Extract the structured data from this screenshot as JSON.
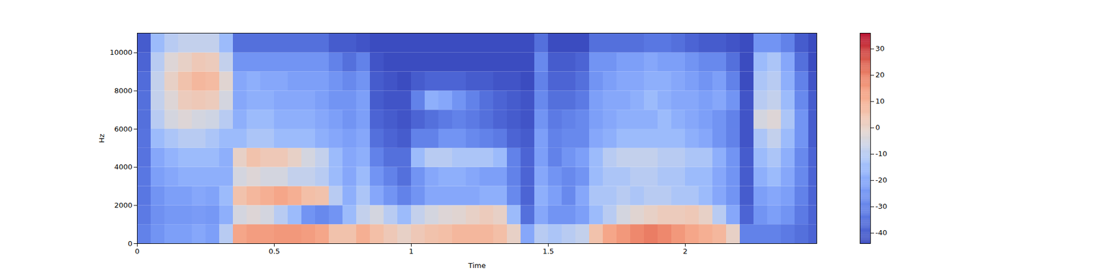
{
  "chart_data": {
    "type": "heatmap",
    "x_label": "Time",
    "y_label": "Hz",
    "time_edges": [
      0,
      0.05,
      0.1,
      0.15,
      0.2,
      0.25,
      0.3,
      0.35,
      0.4,
      0.45,
      0.5,
      0.55,
      0.6,
      0.65,
      0.7,
      0.75,
      0.8,
      0.85,
      0.9,
      0.95,
      1.0,
      1.05,
      1.1,
      1.15,
      1.2,
      1.25,
      1.3,
      1.35,
      1.4,
      1.45,
      1.5,
      1.55,
      1.6,
      1.65,
      1.7,
      1.75,
      1.8,
      1.85,
      1.9,
      1.95,
      2.0,
      2.05,
      2.1,
      2.15,
      2.2,
      2.25,
      2.3,
      2.35,
      2.4,
      2.45,
      2.48
    ],
    "freq_edges": [
      0,
      1000,
      2000,
      3000,
      4000,
      5000,
      6000,
      7000,
      8000,
      9000,
      10000,
      11025
    ],
    "cells": [
      [
        -30,
        -32,
        -33,
        -33,
        -34,
        -34,
        -35,
        -35,
        -36,
        -38,
        -40
      ],
      [
        -25,
        -26,
        -25,
        -22,
        -20,
        -15,
        -10,
        -8,
        -8,
        -10,
        -15
      ],
      [
        -22,
        -24,
        -22,
        -20,
        -17,
        -12,
        -5,
        -3,
        0,
        -3,
        -10
      ],
      [
        -22,
        -24,
        -22,
        -18,
        -15,
        -10,
        -3,
        2,
        5,
        0,
        -8
      ],
      [
        -20,
        -23,
        -20,
        -18,
        -15,
        -10,
        -5,
        3,
        8,
        3,
        -8
      ],
      [
        -22,
        -24,
        -21,
        -18,
        -15,
        -12,
        -6,
        2,
        7,
        2,
        -8
      ],
      [
        -10,
        -18,
        -15,
        -18,
        -18,
        -15,
        -10,
        -5,
        -2,
        -8,
        -15
      ],
      [
        12,
        -5,
        5,
        -5,
        0,
        -15,
        -18,
        -20,
        -20,
        -25,
        -35
      ],
      [
        14,
        -3,
        8,
        -3,
        5,
        -12,
        -15,
        -18,
        -18,
        -25,
        -35
      ],
      [
        14,
        -5,
        10,
        -5,
        3,
        -12,
        -15,
        -18,
        -20,
        -25,
        -35
      ],
      [
        15,
        -10,
        12,
        -5,
        3,
        -15,
        -18,
        -20,
        -20,
        -25,
        -35
      ],
      [
        15,
        -15,
        10,
        -8,
        0,
        -15,
        -18,
        -20,
        -22,
        -25,
        -35
      ],
      [
        14,
        -25,
        6,
        -8,
        -5,
        -15,
        -18,
        -20,
        -22,
        -25,
        -35
      ],
      [
        12,
        -28,
        5,
        -10,
        -8,
        -18,
        -20,
        -22,
        -22,
        -25,
        -35
      ],
      [
        5,
        -25,
        -10,
        -15,
        -15,
        -20,
        -22,
        -25,
        -25,
        -30,
        -40
      ],
      [
        5,
        -15,
        -18,
        -20,
        -20,
        -22,
        -25,
        -25,
        -28,
        -35,
        -40
      ],
      [
        10,
        -8,
        -12,
        -15,
        -18,
        -20,
        -22,
        -22,
        -25,
        -30,
        -42
      ],
      [
        6,
        -5,
        -20,
        -25,
        -30,
        -35,
        -38,
        -40,
        -40,
        -42,
        -44
      ],
      [
        3,
        -10,
        -25,
        -30,
        -35,
        -38,
        -40,
        -42,
        -42,
        -44,
        -44
      ],
      [
        0,
        -15,
        -30,
        -35,
        -35,
        -40,
        -42,
        -42,
        -44,
        -44,
        -44
      ],
      [
        3,
        -8,
        -25,
        -25,
        -15,
        -30,
        -38,
        -30,
        -40,
        -44,
        -44
      ],
      [
        5,
        -5,
        -20,
        -20,
        -10,
        -30,
        -35,
        -18,
        -38,
        -44,
        -44
      ],
      [
        6,
        -3,
        -20,
        -18,
        -10,
        -25,
        -32,
        -20,
        -38,
        -44,
        -44
      ],
      [
        8,
        -2,
        -20,
        -18,
        -12,
        -25,
        -30,
        -25,
        -38,
        -44,
        -44
      ],
      [
        8,
        0,
        -20,
        -20,
        -12,
        -28,
        -32,
        -30,
        -40,
        -44,
        -44
      ],
      [
        8,
        2,
        -18,
        -22,
        -12,
        -30,
        -35,
        -35,
        -40,
        -44,
        -44
      ],
      [
        6,
        0,
        -18,
        -22,
        -15,
        -32,
        -38,
        -38,
        -42,
        -44,
        -44
      ],
      [
        0,
        -15,
        -28,
        -30,
        -30,
        -38,
        -40,
        -40,
        -42,
        -44,
        -44
      ],
      [
        -20,
        -35,
        -38,
        -38,
        -38,
        -40,
        -42,
        -42,
        -44,
        -44,
        -44
      ],
      [
        -10,
        -20,
        -18,
        -20,
        -22,
        -22,
        -25,
        -28,
        -30,
        -28,
        -35
      ],
      [
        -12,
        -25,
        -22,
        -25,
        -30,
        -30,
        -32,
        -35,
        -38,
        -40,
        -44
      ],
      [
        -10,
        -25,
        -28,
        -28,
        -25,
        -28,
        -30,
        -35,
        -38,
        -40,
        -44
      ],
      [
        -8,
        -22,
        -20,
        -25,
        -22,
        -28,
        -28,
        -32,
        -35,
        -38,
        -44
      ],
      [
        5,
        -15,
        -12,
        -15,
        -15,
        -20,
        -22,
        -22,
        -25,
        -25,
        -35
      ],
      [
        12,
        -10,
        -12,
        -12,
        -10,
        -18,
        -20,
        -20,
        -22,
        -25,
        -35
      ],
      [
        15,
        -5,
        -10,
        -12,
        -8,
        -15,
        -18,
        -20,
        -20,
        -22,
        -35
      ],
      [
        18,
        -2,
        -12,
        -10,
        -8,
        -15,
        -18,
        -18,
        -20,
        -22,
        -35
      ],
      [
        20,
        0,
        -10,
        -10,
        -8,
        -15,
        -18,
        -15,
        -18,
        -20,
        -33
      ],
      [
        18,
        2,
        -10,
        -12,
        -10,
        -15,
        -15,
        -18,
        -18,
        -22,
        -33
      ],
      [
        15,
        2,
        -12,
        -12,
        -10,
        -15,
        -18,
        -20,
        -20,
        -22,
        -35
      ],
      [
        12,
        3,
        -12,
        -15,
        -12,
        -18,
        -20,
        -20,
        -22,
        -25,
        -38
      ],
      [
        10,
        0,
        -15,
        -15,
        -12,
        -20,
        -22,
        -22,
        -25,
        -28,
        -40
      ],
      [
        8,
        -10,
        -20,
        -20,
        -18,
        -25,
        -25,
        -20,
        -22,
        -28,
        -40
      ],
      [
        0,
        -20,
        -25,
        -25,
        -25,
        -30,
        -30,
        -25,
        -30,
        -35,
        -42
      ],
      [
        -30,
        -38,
        -40,
        -40,
        -40,
        -42,
        -42,
        -42,
        -44,
        -44,
        -44
      ],
      [
        -30,
        -25,
        -22,
        -18,
        -15,
        -12,
        -5,
        -10,
        -12,
        -15,
        -25
      ],
      [
        -30,
        -22,
        -20,
        -15,
        -12,
        -8,
        -3,
        -8,
        -10,
        -12,
        -25
      ],
      [
        -32,
        -25,
        -22,
        -20,
        -18,
        -15,
        -12,
        -15,
        -18,
        -20,
        -30
      ],
      [
        -35,
        -32,
        -30,
        -28,
        -28,
        -25,
        -25,
        -28,
        -30,
        -35,
        -40
      ],
      [
        -38,
        -38,
        -38,
        -38,
        -38,
        -40,
        -40,
        -40,
        -42,
        -44,
        -44
      ]
    ],
    "xlim": [
      0,
      2.48
    ],
    "ylim": [
      0,
      11025
    ],
    "xticks": [
      0,
      0.5,
      1,
      1.5,
      2
    ],
    "yticks": [
      0,
      2000,
      4000,
      6000,
      8000,
      10000
    ],
    "colorbar_range": [
      -44,
      36
    ],
    "colorbar_ticks": [
      -40,
      -30,
      -20,
      -10,
      0,
      10,
      20,
      30
    ]
  }
}
